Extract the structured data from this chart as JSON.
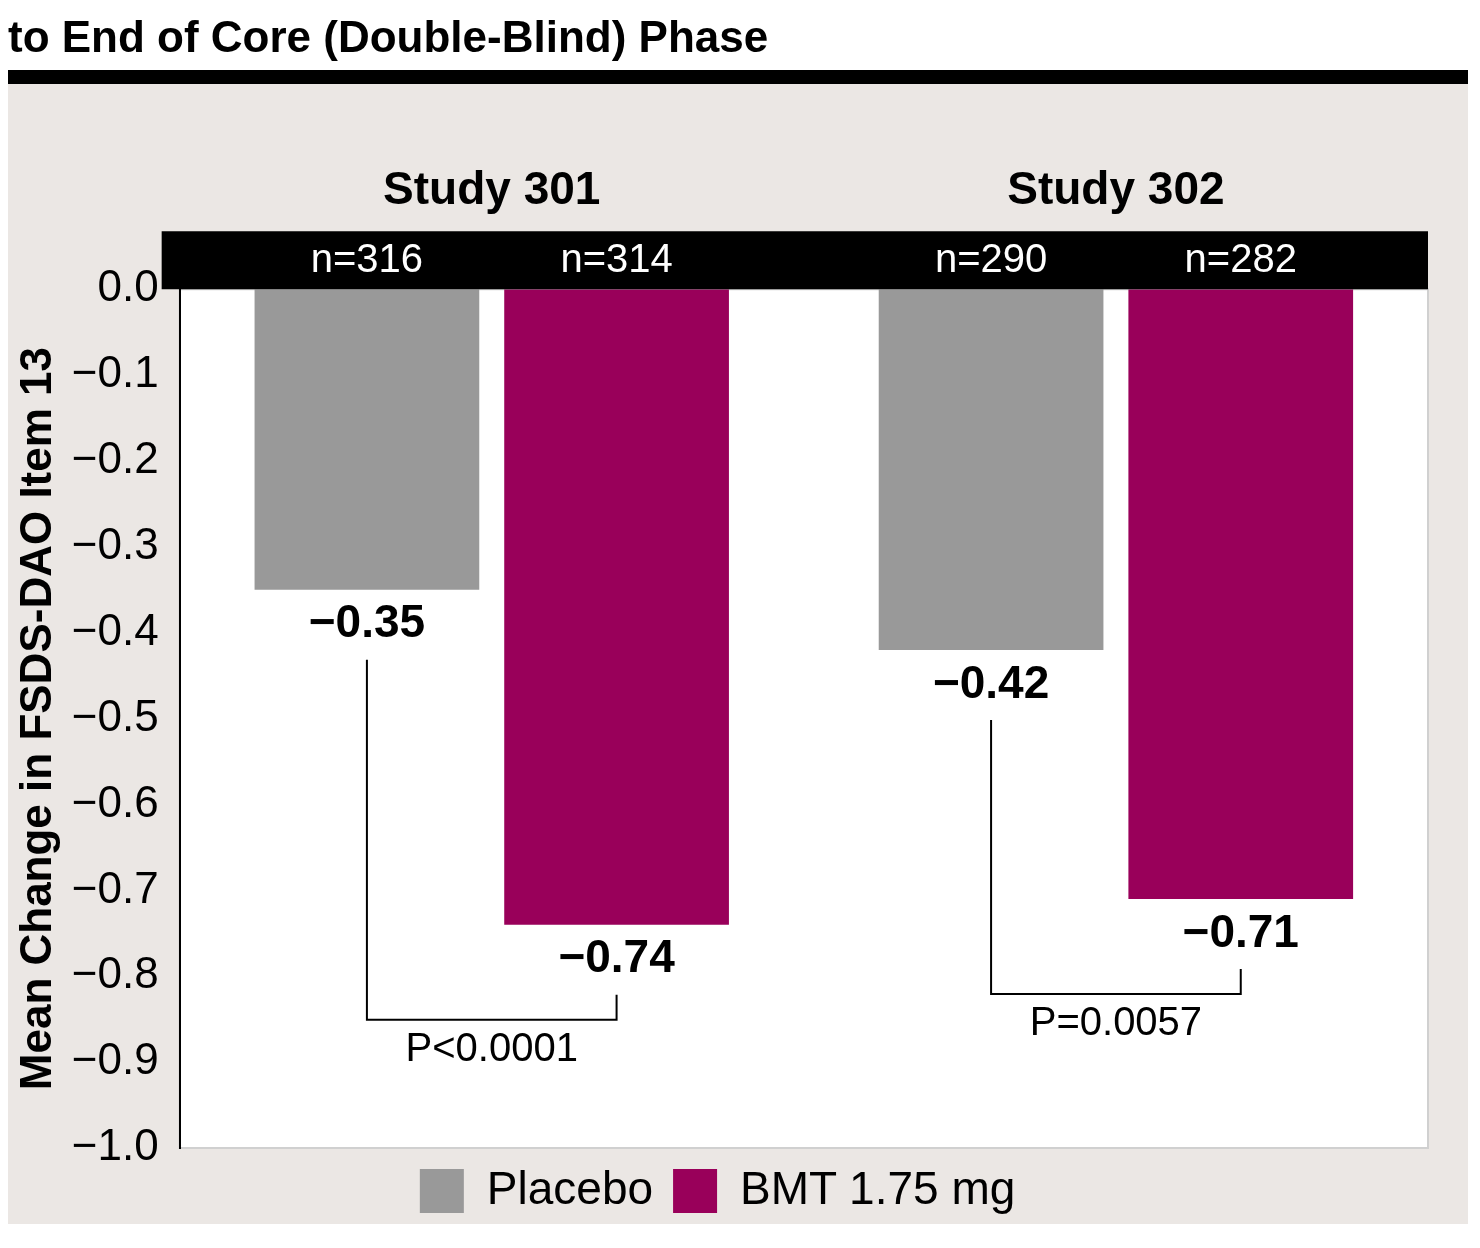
{
  "chart_data": {
    "type": "bar",
    "title": "to End of Core (Double-Blind) Phase",
    "ylabel": "Mean Change in FSDS-DAO Item 13",
    "categories": [
      "Study 301",
      "Study 302"
    ],
    "series": [
      {
        "name": "Placebo",
        "color": "#999999",
        "values": [
          -0.35,
          -0.42
        ]
      },
      {
        "name": "BMT 1.75 mg",
        "color": "#99005a",
        "values": [
          -0.74,
          -0.71
        ]
      }
    ],
    "ylim": [
      -1.0,
      0
    ],
    "yticks": [
      {
        "value": 0,
        "label": "0.0"
      },
      {
        "value": -0.1,
        "label": "−0.1"
      },
      {
        "value": -0.2,
        "label": "−0.2"
      },
      {
        "value": -0.3,
        "label": "−0.3"
      },
      {
        "value": -0.4,
        "label": "−0.4"
      },
      {
        "value": -0.5,
        "label": "−0.5"
      },
      {
        "value": -0.6,
        "label": "−0.6"
      },
      {
        "value": -0.7,
        "label": "−0.7"
      },
      {
        "value": -0.8,
        "label": "−0.8"
      },
      {
        "value": -0.9,
        "label": "−0.9"
      },
      {
        "value": -1.0,
        "label": "−1.0"
      }
    ],
    "annotations": [
      "n=316",
      "n=314",
      "n=290",
      "n=282",
      "P<0.0001",
      "P=0.0057"
    ],
    "data_labels": true,
    "grid": false,
    "legend": "bottom"
  }
}
